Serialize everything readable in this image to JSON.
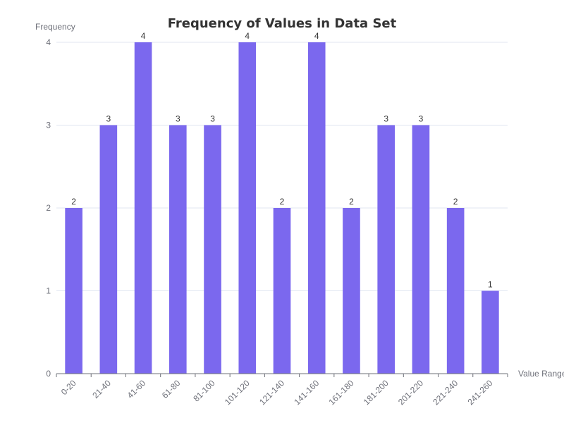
{
  "chart_data": {
    "type": "bar",
    "title": "Frequency of Values in Data Set",
    "xlabel": "Value Range",
    "ylabel": "Frequency",
    "categories": [
      "0-20",
      "21-40",
      "41-60",
      "61-80",
      "81-100",
      "101-120",
      "121-140",
      "141-160",
      "161-180",
      "181-200",
      "201-220",
      "221-240",
      "241-260"
    ],
    "values": [
      2,
      3,
      4,
      3,
      3,
      4,
      2,
      4,
      2,
      3,
      3,
      2,
      1
    ],
    "y_ticks": [
      0,
      1,
      2,
      3,
      4
    ],
    "ylim": [
      0,
      4
    ],
    "bar_color": "#7b68ee",
    "grid": true,
    "data_labels": true
  }
}
